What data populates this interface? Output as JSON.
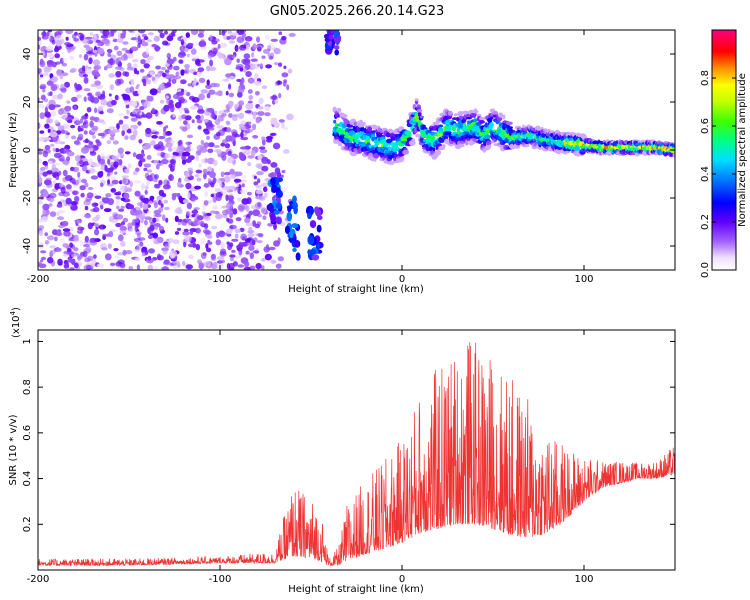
{
  "figure_title": "GN05.2025.266.20.14.G23",
  "chart_data": [
    {
      "type": "heatmap",
      "title": "",
      "xlabel": "Height of straight line (km)",
      "ylabel": "Frequency (Hz)",
      "xlim": [
        -200,
        150
      ],
      "ylim": [
        -50,
        50
      ],
      "x_ticks": [
        -200,
        -100,
        0,
        100
      ],
      "y_ticks": [
        -40,
        -20,
        0,
        20,
        40
      ],
      "colorbar": {
        "label": "Normalized spectral amplitude",
        "range": [
          0,
          1
        ],
        "ticks": [
          "0.0",
          "0.2",
          "0.4",
          "0.6",
          "0.8"
        ],
        "tick_values": [
          0.0,
          0.2,
          0.4,
          0.6,
          0.8
        ],
        "colors": [
          "#ffffff",
          "#8000ff",
          "#0000ff",
          "#00c8ff",
          "#00ff80",
          "#80ff00",
          "#ffff00",
          "#ff8000",
          "#ff0000",
          "#ff00a0"
        ]
      },
      "regions": [
        {
          "name": "noise",
          "x_range": [
            -200,
            -60
          ],
          "freq_range": [
            -50,
            50
          ],
          "amplitude": 0.15
        },
        {
          "name": "gap",
          "x_range": [
            -60,
            -38
          ],
          "freq_range": [
            -50,
            50
          ],
          "amplitude": 0.0
        },
        {
          "name": "signal_band",
          "x_range": [
            -38,
            150
          ],
          "amplitude": 0.6
        }
      ],
      "signal_track": {
        "x": [
          -35,
          -30,
          -20,
          -10,
          -5,
          0,
          5,
          8,
          12,
          18,
          25,
          30,
          40,
          45,
          50,
          60,
          70,
          80,
          90,
          100,
          110,
          120,
          130,
          140,
          150
        ],
        "freq": [
          10,
          6,
          4,
          2,
          1,
          3,
          8,
          15,
          6,
          4,
          10,
          8,
          10,
          6,
          10,
          5,
          6,
          4,
          3,
          2,
          1,
          1,
          1,
          1,
          0
        ]
      },
      "early_features": [
        {
          "x": -70,
          "freq_range": [
            -30,
            -10
          ]
        },
        {
          "x": -60,
          "freq_range": [
            -45,
            -20
          ]
        },
        {
          "x": -48,
          "freq_range": [
            -45,
            -25
          ]
        },
        {
          "x": -38,
          "freq_range": [
            40,
            50
          ]
        }
      ]
    },
    {
      "type": "line",
      "title": "",
      "xlabel": "Height of straight line (km)",
      "ylabel": "SNR (10 * v/v)",
      "y_multiplier": "(x10",
      "y_multiplier_exp": "4",
      "y_multiplier_close": ")",
      "xlim": [
        -200,
        150
      ],
      "ylim": [
        0,
        1.05
      ],
      "x_ticks": [
        -200,
        -100,
        0,
        100
      ],
      "y_ticks": [
        0.2,
        0.4,
        0.6,
        0.8,
        1.0
      ],
      "line_color": "#ee3333",
      "envelope": {
        "x": [
          -200,
          -150,
          -100,
          -70,
          -60,
          -50,
          -45,
          -40,
          -35,
          -30,
          -20,
          -10,
          0,
          10,
          20,
          30,
          35,
          40,
          50,
          60,
          70,
          80,
          90,
          100,
          110,
          120,
          130,
          140,
          150
        ],
        "base": [
          0.02,
          0.02,
          0.03,
          0.03,
          0.06,
          0.05,
          0.04,
          0.02,
          0.02,
          0.04,
          0.07,
          0.09,
          0.12,
          0.16,
          0.18,
          0.2,
          0.2,
          0.2,
          0.18,
          0.15,
          0.14,
          0.16,
          0.22,
          0.3,
          0.36,
          0.38,
          0.4,
          0.4,
          0.42
        ],
        "peak": [
          0.05,
          0.05,
          0.06,
          0.08,
          0.38,
          0.32,
          0.28,
          0.05,
          0.1,
          0.3,
          0.4,
          0.48,
          0.58,
          0.8,
          0.9,
          0.98,
          1.05,
          1.0,
          0.95,
          0.85,
          0.75,
          0.6,
          0.55,
          0.5,
          0.48,
          0.48,
          0.47,
          0.48,
          0.55
        ]
      }
    }
  ]
}
